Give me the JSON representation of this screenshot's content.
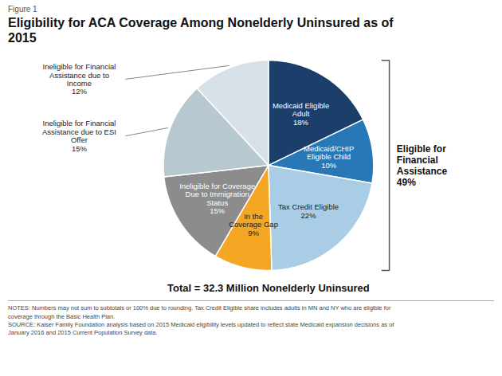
{
  "chart_data": {
    "type": "pie",
    "title": "Eligibility for ACA Coverage Among Nonelderly Uninsured as of\n2015",
    "categories": [
      "Medicaid Eligible\nAdult",
      "Medicaid/CHIP\nEligible Child",
      "Tax Credit Eligible",
      "In the\nCoverage Gap",
      "Ineligible for Coverage\nDue to Immigration\nStatus",
      "Ineligible for Financial\nAssistance due to ESI\nOffer",
      "Ineligible for Financial\nAssistance due to\nIncome"
    ],
    "values": [
      18,
      10,
      22,
      9,
      15,
      15,
      12
    ],
    "value_labels": [
      "18%",
      "10%",
      "22%",
      "9%",
      "15%",
      "15%",
      "12%"
    ],
    "data_labels": true,
    "colors": [
      "#1b3f6a",
      "#2878b8",
      "#a8cde4",
      "#f5a623",
      "#8c8c8c",
      "#b8c8d0",
      "#d8e0e8"
    ],
    "annotations": [
      "Figure 1",
      "Total = 32.3 Million Nonelderly Uninsured",
      "Eligible for\nFinancial\nAssistance\n49%",
      "NOTES: Numbers may not sum to subtotals or 100% due to rounding. Tax Credit Eligible share includes adults in MN and NY who are eligible for",
      "coverage through the Basic Health Plan.",
      "SOURCE: Kaiser Family Foundation analysis based on 2015 Medicaid eligibility levels updated to reflect state Medicaid expansion decisions as of",
      "January 2016 and 2015 Current Population Survey data."
    ]
  }
}
